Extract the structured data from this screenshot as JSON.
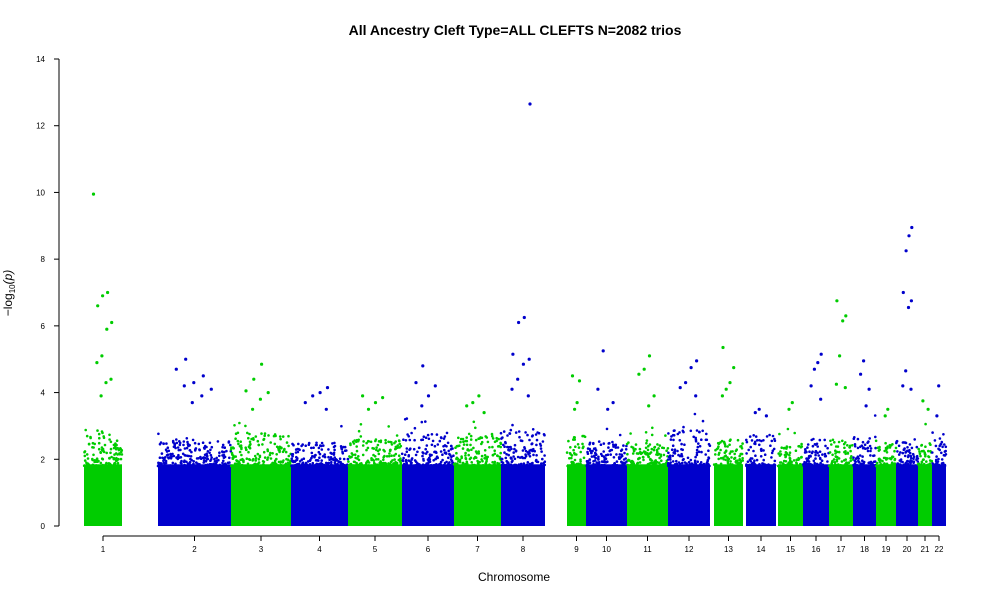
{
  "chart_data": {
    "type": "scatter",
    "subtype": "manhattan",
    "title": "All Ancestry Cleft Type=ALL CLEFTS N=2082 trios",
    "xlabel": "Chromosome",
    "ylabel": "−log10(p)",
    "ylabel_main": "−log",
    "ylabel_sub": "10",
    "ylabel_tail": "(p)",
    "ylim": [
      0,
      14
    ],
    "yticks": [
      "0",
      "2",
      "4",
      "6",
      "8",
      "10",
      "12",
      "14"
    ],
    "colors": {
      "green": "#00cc00",
      "blue": "#0000cc"
    },
    "chromosomes": [
      {
        "label": "1",
        "color": "green",
        "typical_max": 2.9,
        "tops": [
          9.95,
          7.0,
          6.9,
          6.6,
          6.1,
          5.9,
          5.1,
          4.9,
          4.4,
          4.3,
          3.9
        ]
      },
      {
        "label": "2",
        "color": "blue",
        "typical_max": 2.6,
        "tops": [
          5.0,
          4.7,
          4.5,
          4.3,
          4.2,
          4.1,
          3.9,
          3.7
        ]
      },
      {
        "label": "3",
        "color": "green",
        "typical_max": 2.8,
        "tops": [
          4.85,
          4.4,
          4.05,
          4.0,
          3.8,
          3.5
        ]
      },
      {
        "label": "4",
        "color": "blue",
        "typical_max": 2.5,
        "tops": [
          4.15,
          4.0,
          3.9,
          3.7,
          3.5
        ]
      },
      {
        "label": "5",
        "color": "green",
        "typical_max": 2.6,
        "tops": [
          3.9,
          3.85,
          3.7,
          3.5
        ]
      },
      {
        "label": "6",
        "color": "blue",
        "typical_max": 2.8,
        "tops": [
          4.8,
          4.3,
          4.2,
          3.9,
          3.6
        ]
      },
      {
        "label": "7",
        "color": "green",
        "typical_max": 2.7,
        "tops": [
          3.9,
          3.7,
          3.6,
          3.4
        ]
      },
      {
        "label": "8",
        "color": "blue",
        "typical_max": 2.9,
        "tops": [
          12.65,
          6.25,
          6.1,
          5.15,
          5.0,
          4.85,
          4.4,
          4.1,
          3.9
        ]
      },
      {
        "label": "9",
        "color": "green",
        "typical_max": 2.7,
        "tops": [
          4.5,
          4.35,
          3.7,
          3.5
        ]
      },
      {
        "label": "10",
        "color": "blue",
        "typical_max": 2.6,
        "tops": [
          5.25,
          4.1,
          3.7,
          3.5
        ]
      },
      {
        "label": "11",
        "color": "green",
        "typical_max": 2.5,
        "tops": [
          5.1,
          4.7,
          4.55,
          3.9,
          3.6
        ]
      },
      {
        "label": "12",
        "color": "blue",
        "typical_max": 2.9,
        "tops": [
          4.95,
          4.75,
          4.3,
          4.15,
          3.9
        ]
      },
      {
        "label": "13",
        "color": "green",
        "typical_max": 2.6,
        "tops": [
          5.35,
          4.75,
          4.3,
          4.1,
          3.9
        ]
      },
      {
        "label": "14",
        "color": "blue",
        "typical_max": 2.7,
        "tops": [
          3.5,
          3.4,
          3.3
        ]
      },
      {
        "label": "15",
        "color": "green",
        "typical_max": 2.4,
        "tops": [
          3.7,
          3.5
        ]
      },
      {
        "label": "16",
        "color": "blue",
        "typical_max": 2.6,
        "tops": [
          5.15,
          4.9,
          4.7,
          4.2,
          3.8
        ]
      },
      {
        "label": "17",
        "color": "green",
        "typical_max": 2.7,
        "tops": [
          6.75,
          6.3,
          6.15,
          5.1,
          4.25,
          4.15
        ]
      },
      {
        "label": "18",
        "color": "blue",
        "typical_max": 2.7,
        "tops": [
          4.95,
          4.55,
          4.1,
          3.6
        ]
      },
      {
        "label": "19",
        "color": "green",
        "typical_max": 2.5,
        "tops": [
          3.5,
          3.3
        ]
      },
      {
        "label": "20",
        "color": "blue",
        "typical_max": 2.6,
        "tops": [
          8.95,
          8.7,
          8.25,
          7.0,
          6.75,
          6.55,
          4.65,
          4.2,
          4.1
        ]
      },
      {
        "label": "21",
        "color": "green",
        "typical_max": 2.5,
        "tops": [
          3.75,
          3.5
        ]
      },
      {
        "label": "22",
        "color": "blue",
        "typical_max": 2.8,
        "tops": [
          4.2,
          3.3
        ]
      }
    ]
  }
}
